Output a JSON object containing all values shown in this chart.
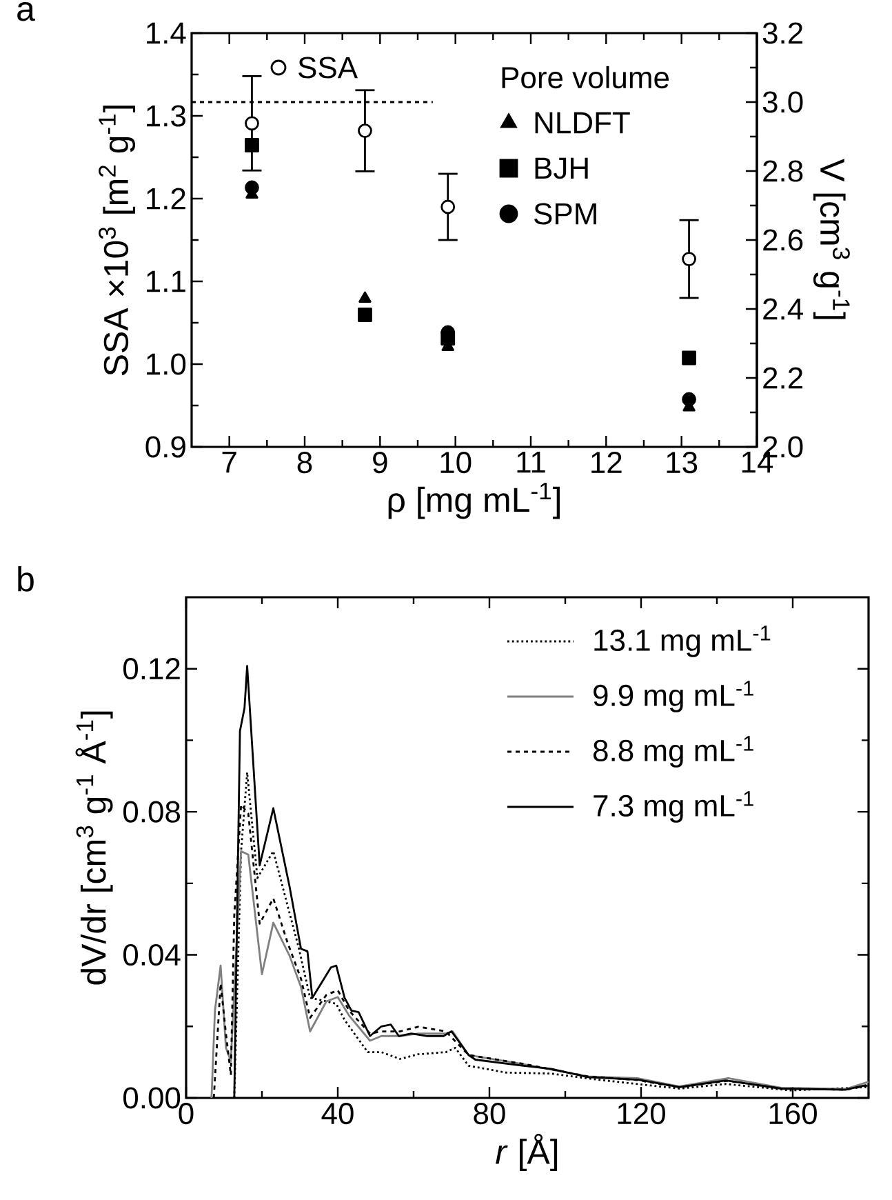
{
  "chart_data": [
    {
      "type": "scatter",
      "title": "a",
      "xlabel": "ρ [mg mL$^{-1}$]",
      "ylabel": "SSA ×10$^{3}$ [m$^{2}$ g$^{-1}$]",
      "y2label": "V [cm$^{3}$ g$^{-1}$]",
      "legend_title": "Pore volume",
      "legend": "top right",
      "x": [
        7.3,
        8.8,
        9.9,
        13.1
      ],
      "xlim": [
        6.5,
        14
      ],
      "xticks": [
        7,
        8,
        9,
        10,
        11,
        12,
        13,
        14
      ],
      "ylim": [
        0.9,
        1.4
      ],
      "yticks": [
        {
          "value": 0.9,
          "label": "0.9"
        },
        {
          "value": 1.0,
          "label": "1.0"
        },
        {
          "value": 1.1,
          "label": "1.1"
        },
        {
          "value": 1.2,
          "label": "1.2"
        },
        {
          "value": 1.3,
          "label": "1.3"
        },
        {
          "value": 1.4,
          "label": "1.4"
        }
      ],
      "y2lim": [
        2.0,
        3.2
      ],
      "y2ticks": [
        {
          "value": 2.0,
          "label": "2.0"
        },
        {
          "value": 2.2,
          "label": "2.2"
        },
        {
          "value": 2.4,
          "label": "2.4"
        },
        {
          "value": 2.6,
          "label": "2.6"
        },
        {
          "value": 2.8,
          "label": "2.8"
        },
        {
          "value": 3.0,
          "label": "3.0"
        },
        {
          "value": 3.2,
          "label": "3.2"
        }
      ],
      "series": [
        {
          "name": "SSA",
          "color": "#000000",
          "marker": "circle",
          "values": [
            1.291,
            1.282,
            1.19,
            1.127
          ],
          "errors": [
            0.057,
            0.049,
            0.04,
            0.047
          ]
        },
        {
          "name": "NLDFT",
          "color": "#000000",
          "marker": "triangle",
          "axis": "y2",
          "values": [
            2.732,
            2.43,
            2.29,
            2.115
          ]
        },
        {
          "name": "BJH",
          "color": "#000000",
          "marker": "square",
          "axis": "y2",
          "values": [
            2.875,
            2.383,
            2.315,
            2.258
          ]
        },
        {
          "name": "SPM",
          "color": "#000000",
          "marker": "circle",
          "axis": "y2",
          "values": [
            2.752,
            null,
            2.332,
            2.138
          ]
        },
        {
          "type": "line",
          "color": "#000000",
          "axis": "y2",
          "line_style": "dashed",
          "x": [
            6.5,
            9.7
          ],
          "values": [
            3.0,
            3.0
          ]
        }
      ]
    },
    {
      "type": "line",
      "title": "b",
      "xlabel": "*r* [Å]",
      "ylabel": "dV/dr [cm$^{3}$ g$^{-1}$ Å$^{-1}$]",
      "legend": "top right",
      "marker": "none",
      "xlim": [
        0,
        180
      ],
      "xticks": [
        0,
        40,
        80,
        120,
        160
      ],
      "ylim": [
        0,
        0.14
      ],
      "yticks": [
        {
          "value": 0,
          "label": "0.00"
        },
        {
          "value": 0.04,
          "label": "0.04"
        },
        {
          "value": 0.08,
          "label": "0.08"
        },
        {
          "value": 0.12,
          "label": "0.12"
        }
      ],
      "series": [
        {
          "name": "13.1 mg mL$^{-1}$",
          "color": "#000000",
          "line_style": "dotted",
          "x": [
            12.7,
            14.5,
            16.1,
            18.8,
            23,
            26.7,
            29.7,
            32.7,
            37,
            39.6,
            41.8,
            47.9,
            51.5,
            56.4,
            61.2,
            68.5,
            71,
            74.5,
            84.2,
            96.3,
            108.5,
            130.2,
            142.4,
            159.4,
            179.4
          ],
          "values": [
            0,
            0.069,
            0.091,
            0.0615,
            0.069,
            0.054,
            0.042,
            0.028,
            0.027,
            0.0263,
            0.0218,
            0.0128,
            0.0128,
            0.0109,
            0.0122,
            0.0128,
            0.014,
            0.009,
            0.0071,
            0.0068,
            0.0051,
            0.0026,
            0.0039,
            0.0021,
            0.003
          ]
        },
        {
          "name": "9.9 mg mL$^{-1}$",
          "color": "#808080",
          "line_style": "solid",
          "x": [
            6.7,
            7.6,
            9.1,
            10.5,
            11.8,
            14.5,
            16.4,
            20,
            23,
            27.3,
            30.3,
            32.7,
            37,
            40,
            43,
            48.5,
            51.5,
            56.4,
            61.2,
            68.5,
            70.3,
            74.5,
            89,
            106,
            119,
            130,
            143,
            157,
            174,
            180
          ],
          "values": [
            0,
            0.0244,
            0.037,
            0.014,
            0.0103,
            0.069,
            0.068,
            0.0346,
            0.049,
            0.0397,
            0.031,
            0.0186,
            0.027,
            0.0282,
            0.023,
            0.016,
            0.0173,
            0.0173,
            0.018,
            0.018,
            0.0186,
            0.012,
            0.0094,
            0.006,
            0.0055,
            0.0032,
            0.0055,
            0.0028,
            0.0025,
            0.0045
          ]
        },
        {
          "name": "8.8 mg mL$^{-1}$",
          "color": "#000000",
          "line_style": "dashed",
          "x": [
            7.3,
            9.1,
            10.5,
            11.8,
            12.7,
            14.5,
            16.4,
            19.4,
            23,
            26.7,
            30.3,
            32.7,
            37,
            40,
            43,
            48.5,
            51.5,
            56.4,
            61.2,
            68.5,
            74.5,
            89,
            106,
            119,
            130,
            143,
            157,
            174,
            180
          ],
          "values": [
            0,
            0.032,
            0.018,
            0.0064,
            0.051,
            0.082,
            0.0795,
            0.0487,
            0.0558,
            0.0436,
            0.0333,
            0.0224,
            0.0288,
            0.0301,
            0.0244,
            0.018,
            0.0186,
            0.0186,
            0.0199,
            0.0186,
            0.012,
            0.0095,
            0.006,
            0.005,
            0.003,
            0.0048,
            0.0026,
            0.0023,
            0.0035
          ]
        },
        {
          "name": "7.3 mg mL$^{-1}$",
          "color": "#000000",
          "line_style": "solid",
          "x": [
            12.7,
            14.2,
            15.4,
            16.1,
            19.4,
            23,
            27.3,
            30.3,
            32,
            33.3,
            38.2,
            39.6,
            41.8,
            43.6,
            45.5,
            48.5,
            51.5,
            54,
            56.1,
            59.4,
            63.6,
            67.9,
            70,
            74.5,
            76.3,
            89,
            96.3,
            106,
            119.3,
            130.2,
            142.4,
            157,
            173.9,
            179.4
          ],
          "values": [
            0,
            0.1026,
            0.109,
            0.1208,
            0.065,
            0.081,
            0.059,
            0.0417,
            0.041,
            0.028,
            0.0365,
            0.037,
            0.028,
            0.0244,
            0.024,
            0.0173,
            0.02,
            0.0205,
            0.0173,
            0.018,
            0.0173,
            0.0173,
            0.0186,
            0.012,
            0.0107,
            0.009,
            0.0081,
            0.0058,
            0.0051,
            0.003,
            0.0049,
            0.0026,
            0.0023,
            0.0036
          ]
        }
      ]
    }
  ]
}
